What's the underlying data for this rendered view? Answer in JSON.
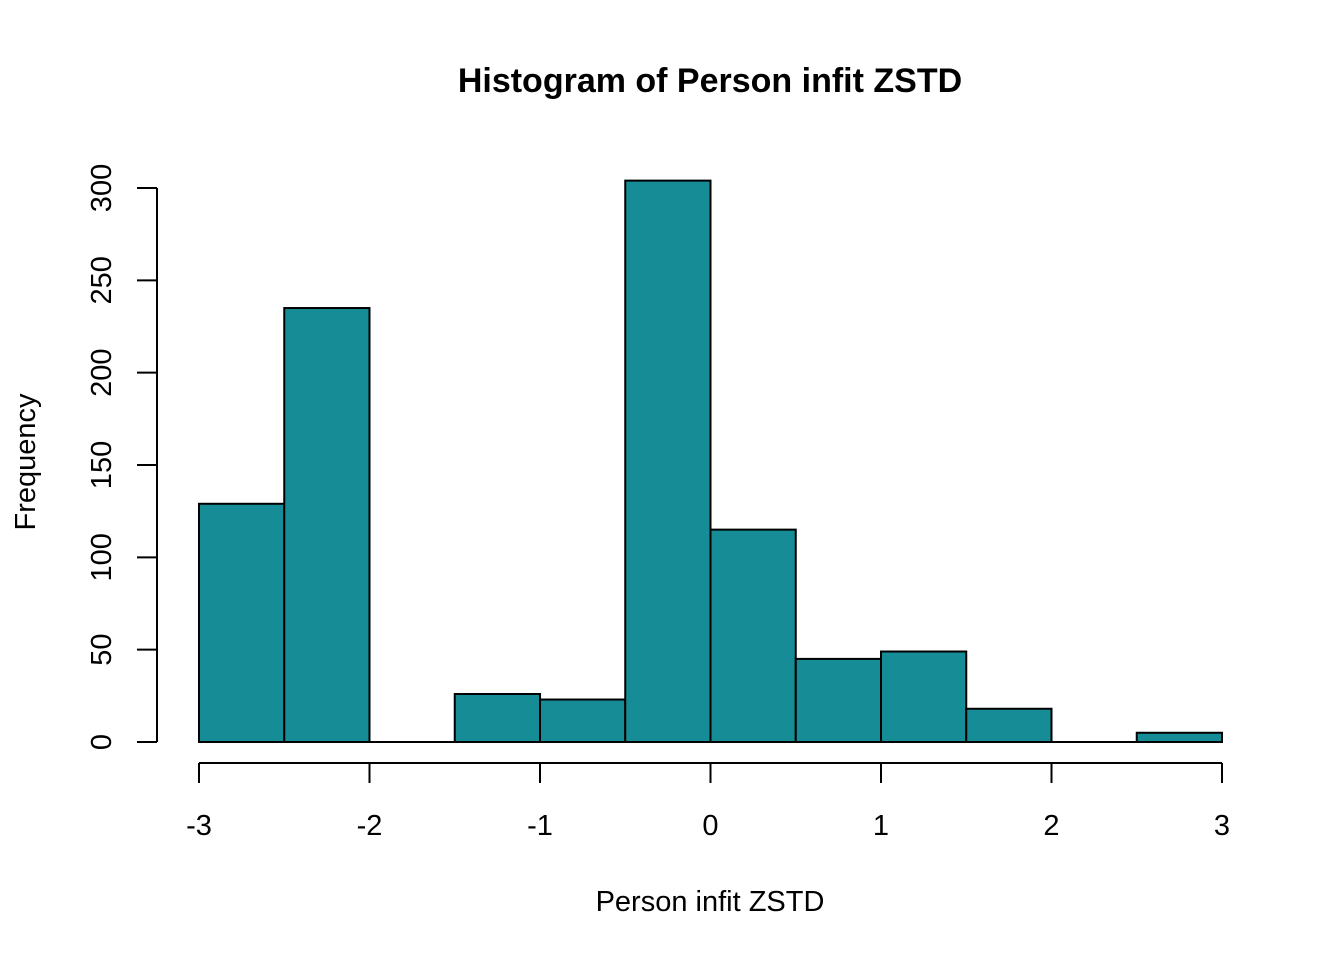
{
  "chart_data": {
    "type": "bar",
    "title": "Histogram of Person infit ZSTD",
    "xlabel": "Person infit ZSTD",
    "ylabel": "Frequency",
    "bin_edges": [
      -3,
      -2.5,
      -2,
      -1.5,
      -1,
      -0.5,
      0,
      0.5,
      1,
      1.5,
      2,
      2.5,
      3
    ],
    "values": [
      129,
      235,
      0,
      26,
      23,
      304,
      115,
      45,
      49,
      18,
      0,
      5
    ],
    "x_ticks": [
      -3,
      -2,
      -1,
      0,
      1,
      2,
      3
    ],
    "x_tick_labels": [
      "-3",
      "-2",
      "-1",
      "0",
      "1",
      "2",
      "3"
    ],
    "y_ticks": [
      0,
      50,
      100,
      150,
      200,
      250,
      300
    ],
    "y_tick_labels": [
      "0",
      "50",
      "100",
      "150",
      "200",
      "250",
      "300"
    ],
    "xlim": [
      -3,
      3
    ],
    "ylim": [
      0,
      300
    ],
    "bar_color": "#168d96",
    "grid": false,
    "legend": "none"
  }
}
